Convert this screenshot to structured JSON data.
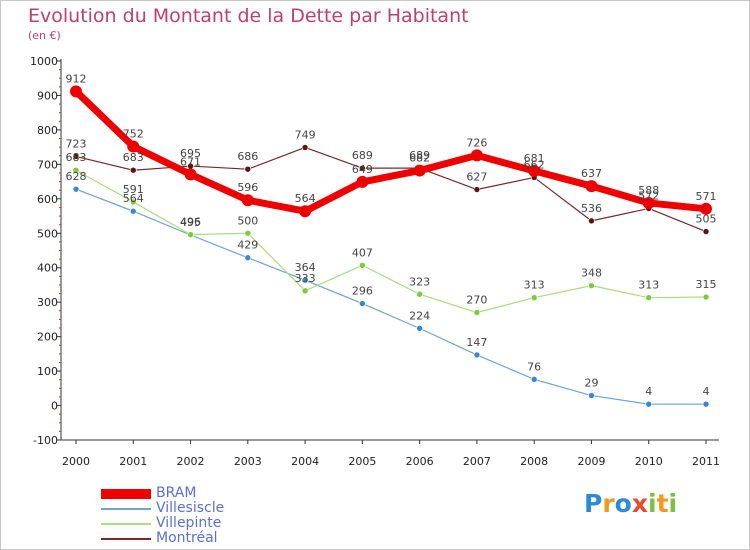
{
  "title": "Evolution du Montant de la Dette par Habitant",
  "subtitle": "(en €)",
  "logo": {
    "text": [
      "P",
      "r",
      "o",
      "x",
      "i",
      "t",
      "i"
    ],
    "colors": [
      "#2a8bd8",
      "#f39a1e",
      "#2a8bd8",
      "#e84a2a",
      "#7ac142",
      "#f39a1e",
      "#7ac142"
    ]
  },
  "chart_data": {
    "type": "line",
    "x": [
      "2000",
      "2001",
      "2002",
      "2003",
      "2004",
      "2005",
      "2006",
      "2007",
      "2008",
      "2009",
      "2010",
      "2011"
    ],
    "ylim": [
      -100,
      1000
    ],
    "yticks": [
      "-100",
      "0",
      "100",
      "200",
      "300",
      "400",
      "500",
      "600",
      "700",
      "800",
      "900",
      "1000"
    ],
    "grid": false,
    "legend_position": "bottom-left",
    "series": [
      {
        "name": "BRAM",
        "color": "#ee0000",
        "dot": "#ee0000",
        "width": 7,
        "radius": 6,
        "values": [
          912,
          752,
          671,
          596,
          564,
          649,
          682,
          726,
          681,
          637,
          588,
          571
        ],
        "labels": [
          "912",
          "752",
          "671",
          "596",
          "564",
          "649",
          "682",
          "726",
          "681",
          "637",
          "588",
          "571"
        ]
      },
      {
        "name": "Villesiscle",
        "color": "#6ea3d4",
        "dot": "#3b86cc",
        "width": 1.2,
        "radius": 3,
        "values": [
          628,
          564,
          495,
          429,
          364,
          296,
          224,
          147,
          76,
          29,
          4,
          4
        ],
        "labels": [
          "628",
          "564",
          "495",
          "429",
          "364",
          "296",
          "224",
          "147",
          "76",
          "29",
          "4",
          "4"
        ]
      },
      {
        "name": "Villepinte",
        "color": "#a8df7c",
        "dot": "#7acc3a",
        "width": 1.2,
        "radius": 3,
        "values": [
          683,
          591,
          496,
          500,
          333,
          407,
          323,
          270,
          313,
          348,
          313,
          315
        ],
        "labels": [
          "683",
          "591",
          "496",
          "500",
          "333",
          "407",
          "323",
          "270",
          "313",
          "348",
          "313",
          "315"
        ]
      },
      {
        "name": "Montréal",
        "color": "#7a2a2a",
        "dot": "#5a1414",
        "width": 1.2,
        "radius": 3,
        "values": [
          723,
          683,
          695,
          686,
          749,
          689,
          689,
          627,
          662,
          536,
          572,
          505
        ],
        "labels": [
          "723",
          "683",
          "695",
          "686",
          "749",
          "689",
          "689",
          "627",
          "662",
          "536",
          "572",
          "505"
        ]
      }
    ]
  }
}
